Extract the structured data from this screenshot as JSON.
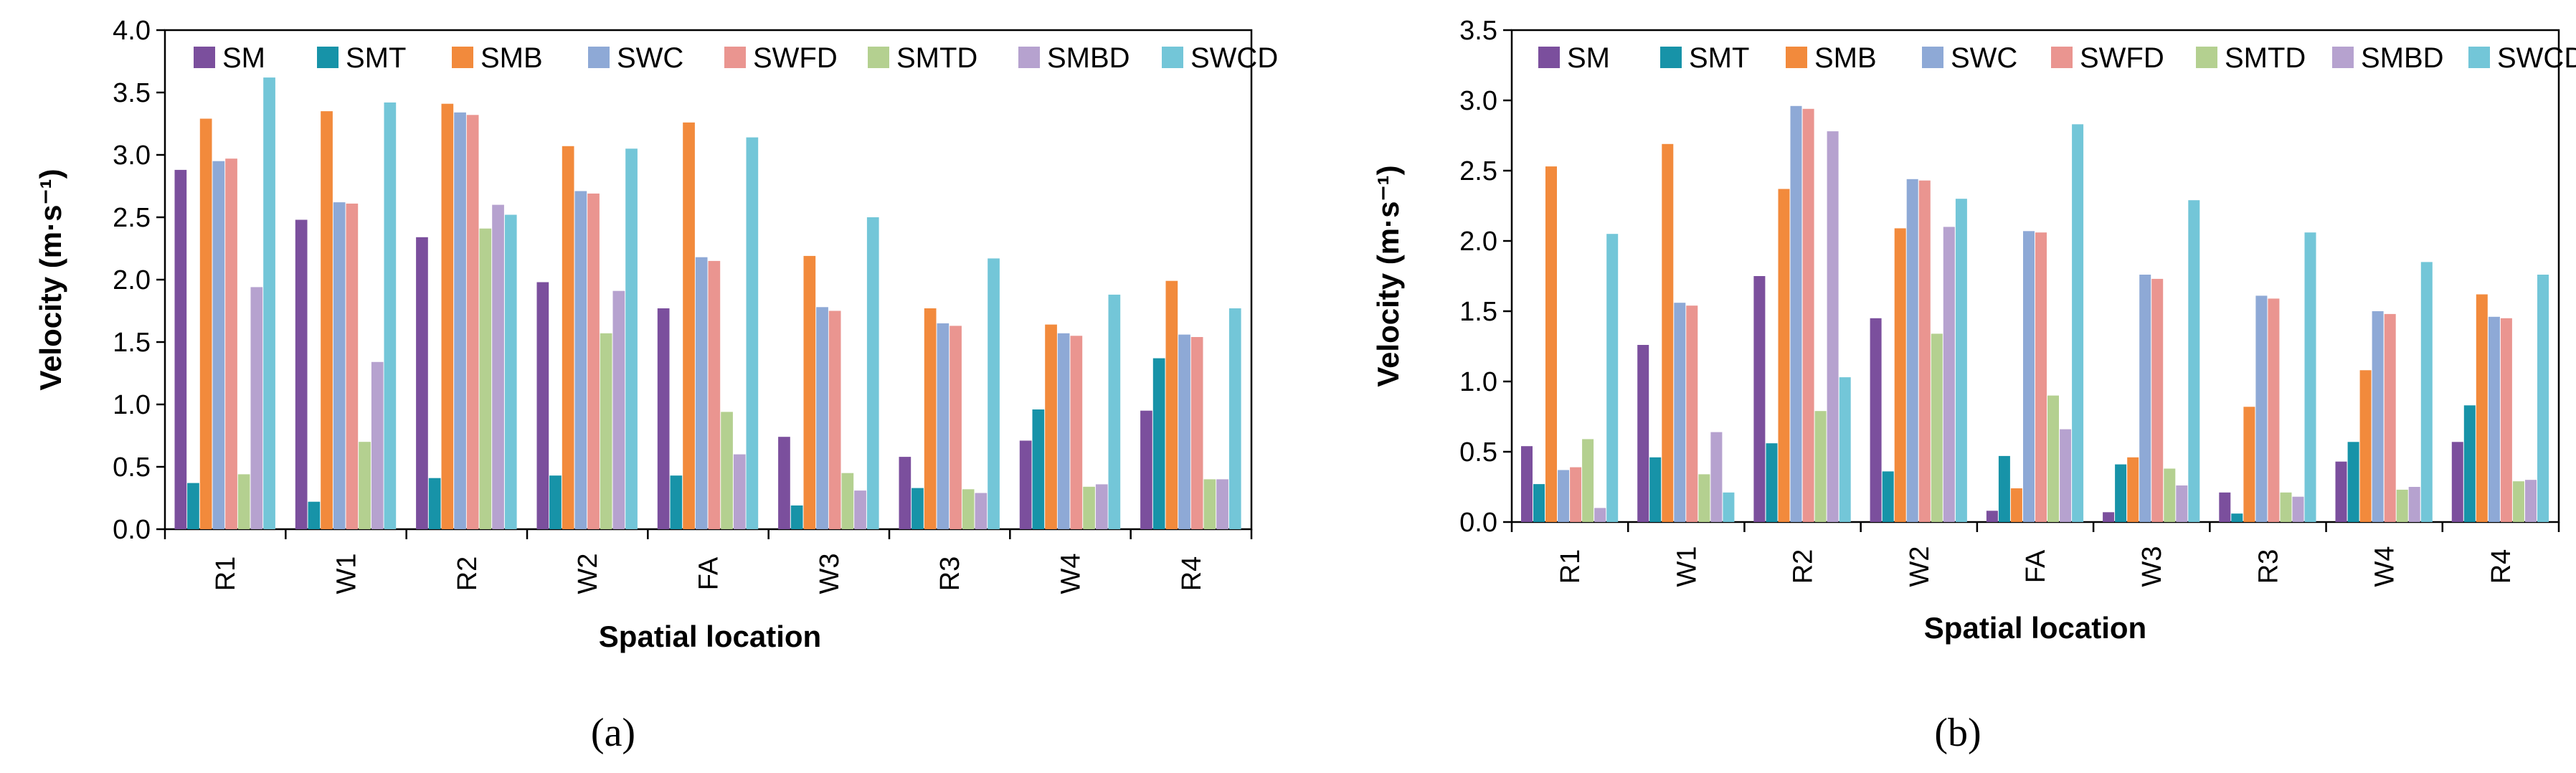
{
  "chart_data": [
    {
      "type": "bar",
      "panel_label": "(a)",
      "title": "",
      "xlabel": "Spatial location",
      "ylabel": "Velocity (m·s⁻¹)",
      "ylim": [
        0,
        4.0
      ],
      "yticks": [
        "0.0",
        "0.5",
        "1.0",
        "1.5",
        "2.0",
        "2.5",
        "3.0",
        "3.5",
        "4.0"
      ],
      "legend_placement": "top",
      "categories": [
        "R1",
        "W1",
        "R2",
        "W2",
        "FA",
        "W3",
        "R3",
        "W4",
        "R4"
      ],
      "series": [
        {
          "name": "SM",
          "color": "#7b4f9d",
          "values": [
            2.88,
            2.48,
            2.34,
            1.98,
            1.77,
            0.74,
            0.58,
            0.71,
            0.95
          ]
        },
        {
          "name": "SMT",
          "color": "#1793a8",
          "values": [
            0.37,
            0.22,
            0.41,
            0.43,
            0.43,
            0.19,
            0.33,
            0.96,
            1.37
          ]
        },
        {
          "name": "SMB",
          "color": "#f28a3c",
          "values": [
            3.29,
            3.35,
            3.41,
            3.07,
            3.26,
            2.19,
            1.77,
            1.64,
            1.99
          ]
        },
        {
          "name": "SWC",
          "color": "#8ea9d6",
          "values": [
            2.95,
            2.62,
            3.34,
            2.71,
            2.18,
            1.78,
            1.65,
            1.57,
            1.56
          ]
        },
        {
          "name": "SWFD",
          "color": "#ea9590",
          "values": [
            2.97,
            2.61,
            3.32,
            2.69,
            2.15,
            1.75,
            1.63,
            1.55,
            1.54
          ]
        },
        {
          "name": "SMTD",
          "color": "#b4d090",
          "values": [
            0.44,
            0.7,
            2.41,
            1.57,
            0.94,
            0.45,
            0.32,
            0.34,
            0.4
          ]
        },
        {
          "name": "SMBD",
          "color": "#b6a2cf",
          "values": [
            1.94,
            1.34,
            2.6,
            1.91,
            0.6,
            0.31,
            0.29,
            0.36,
            0.4
          ]
        },
        {
          "name": "SWCD",
          "color": "#73c6d8",
          "values": [
            3.62,
            3.42,
            2.52,
            3.05,
            3.14,
            2.5,
            2.17,
            1.88,
            1.77
          ]
        }
      ]
    },
    {
      "type": "bar",
      "panel_label": "(b)",
      "title": "",
      "xlabel": "Spatial location",
      "ylabel": "Velocity (m·s⁻¹)",
      "ylim": [
        0,
        3.5
      ],
      "yticks": [
        "0.0",
        "0.5",
        "1.0",
        "1.5",
        "2.0",
        "2.5",
        "3.0",
        "3.5"
      ],
      "legend_placement": "top",
      "categories": [
        "R1",
        "W1",
        "R2",
        "W2",
        "FA",
        "W3",
        "R3",
        "W4",
        "R4"
      ],
      "series": [
        {
          "name": "SM",
          "color": "#7b4f9d",
          "values": [
            0.54,
            1.26,
            1.75,
            1.45,
            0.08,
            0.07,
            0.21,
            0.43,
            0.57
          ]
        },
        {
          "name": "SMT",
          "color": "#1793a8",
          "values": [
            0.27,
            0.46,
            0.56,
            0.36,
            0.47,
            0.41,
            0.06,
            0.57,
            0.83
          ]
        },
        {
          "name": "SMB",
          "color": "#f28a3c",
          "values": [
            2.53,
            2.69,
            2.37,
            2.09,
            0.24,
            0.46,
            0.82,
            1.08,
            1.62
          ]
        },
        {
          "name": "SWC",
          "color": "#8ea9d6",
          "values": [
            0.37,
            1.56,
            2.96,
            2.44,
            2.07,
            1.76,
            1.61,
            1.5,
            1.46
          ]
        },
        {
          "name": "SWFD",
          "color": "#ea9590",
          "values": [
            0.39,
            1.54,
            2.94,
            2.43,
            2.06,
            1.73,
            1.59,
            1.48,
            1.45
          ]
        },
        {
          "name": "SMTD",
          "color": "#b4d090",
          "values": [
            0.59,
            0.34,
            0.79,
            1.34,
            0.9,
            0.38,
            0.21,
            0.23,
            0.29
          ]
        },
        {
          "name": "SMBD",
          "color": "#b6a2cf",
          "values": [
            0.1,
            0.64,
            2.78,
            2.1,
            0.66,
            0.26,
            0.18,
            0.25,
            0.3
          ]
        },
        {
          "name": "SWCD",
          "color": "#73c6d8",
          "values": [
            2.05,
            0.21,
            1.03,
            2.3,
            2.83,
            2.29,
            2.06,
            1.85,
            1.76
          ]
        }
      ]
    }
  ]
}
